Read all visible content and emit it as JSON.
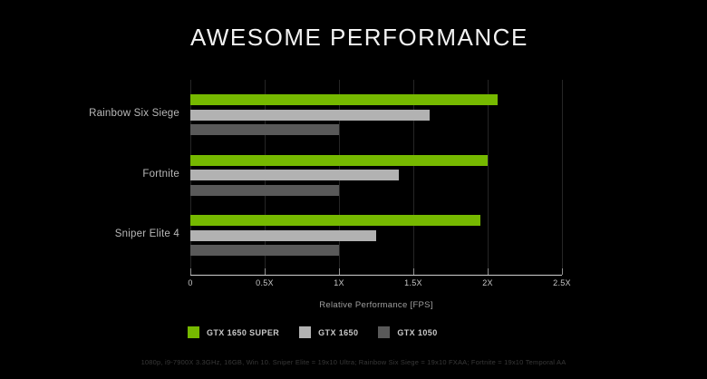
{
  "title": "AWESOME PERFORMANCE",
  "chart_data": {
    "type": "bar",
    "orientation": "horizontal",
    "title": "AWESOME PERFORMANCE",
    "categories": [
      "Rainbow Six Siege",
      "Fortnite",
      "Sniper Elite 4"
    ],
    "series": [
      {
        "name": "GTX 1650 SUPER",
        "color": "#76b900",
        "values": [
          2.07,
          2.0,
          1.95
        ]
      },
      {
        "name": "GTX 1650",
        "color": "#b2b2b2",
        "values": [
          1.61,
          1.4,
          1.25
        ]
      },
      {
        "name": "GTX 1050",
        "color": "#595959",
        "values": [
          1.0,
          1.0,
          1.0
        ]
      }
    ],
    "xlabel": "Relative Performance [FPS]",
    "ylabel": "",
    "xlim": [
      0,
      2.5
    ],
    "xtick_labels": [
      "0",
      "0.5X",
      "1X",
      "1.5X",
      "2X",
      "2.5X"
    ],
    "xtick_values": [
      0,
      0.5,
      1.0,
      1.5,
      2.0,
      2.5
    ],
    "grid": "vertical",
    "legend_position": "bottom-left"
  },
  "footnote": "1080p, i9-7900X 3.3GHz, 16GB, Win 10. Sniper Elite = 19x10 Ultra; Rainbow Six Siege = 19x10 FXAA; Fortnite = 19x10 Temporal AA",
  "colors": {
    "background": "#000000",
    "title_text": "#f2f2f2",
    "accent_green": "#76b900",
    "bar_light_gray": "#b2b2b2",
    "bar_dark_gray": "#595959",
    "axis_line": "#cfcfcf",
    "gridline": "#262626",
    "tick_text": "#c8c8c8",
    "category_text": "#b8b8b8",
    "footnote_text": "#383838"
  }
}
